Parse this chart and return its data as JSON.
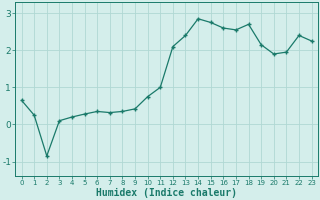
{
  "x": [
    0,
    1,
    2,
    3,
    4,
    5,
    6,
    7,
    8,
    9,
    10,
    11,
    12,
    13,
    14,
    15,
    16,
    17,
    18,
    19,
    20,
    21,
    22,
    23
  ],
  "y": [
    0.65,
    0.25,
    -0.85,
    0.1,
    0.2,
    0.28,
    0.35,
    0.32,
    0.35,
    0.42,
    0.75,
    1.0,
    2.1,
    2.4,
    2.85,
    2.75,
    2.6,
    2.55,
    2.7,
    2.15,
    1.9,
    1.95,
    2.4,
    2.25
  ],
  "line_color": "#1a7a6a",
  "marker": "+",
  "marker_size": 3.5,
  "linewidth": 0.9,
  "bg_color": "#d4eeeb",
  "grid_color": "#b0d8d4",
  "tick_color": "#1a7a6a",
  "xlabel": "Humidex (Indice chaleur)",
  "xlabel_fontsize": 7,
  "ytick_fontsize": 6.5,
  "xtick_fontsize": 5.0,
  "yticks": [
    -1,
    0,
    1,
    2,
    3
  ],
  "xticks": [
    0,
    1,
    2,
    3,
    4,
    5,
    6,
    7,
    8,
    9,
    10,
    11,
    12,
    13,
    14,
    15,
    16,
    17,
    18,
    19,
    20,
    21,
    22,
    23
  ],
  "ylim": [
    -1.4,
    3.3
  ],
  "xlim": [
    -0.5,
    23.5
  ]
}
